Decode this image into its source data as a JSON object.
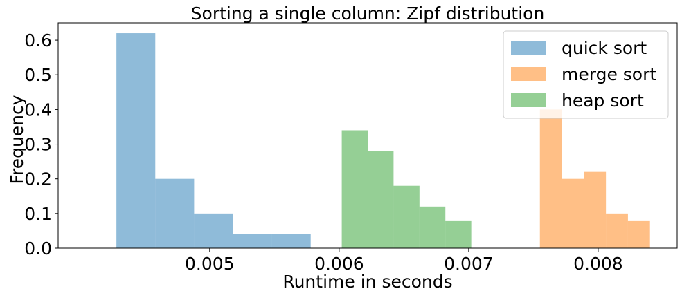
{
  "chart_data": {
    "type": "bar",
    "title": "Sorting a single column: Zipf distribution",
    "xlabel": "Runtime in seconds",
    "ylabel": "Frequency",
    "xlim": [
      0.00383,
      0.00861
    ],
    "ylim": [
      0.0,
      0.65
    ],
    "xticks": [
      {
        "value": 0.005,
        "label": "0.005"
      },
      {
        "value": 0.006,
        "label": "0.006"
      },
      {
        "value": 0.007,
        "label": "0.007"
      },
      {
        "value": 0.008,
        "label": "0.008"
      }
    ],
    "yticks": [
      {
        "value": 0.0,
        "label": "0.0"
      },
      {
        "value": 0.1,
        "label": "0.1"
      },
      {
        "value": 0.2,
        "label": "0.2"
      },
      {
        "value": 0.3,
        "label": "0.3"
      },
      {
        "value": 0.4,
        "label": "0.4"
      },
      {
        "value": 0.5,
        "label": "0.5"
      },
      {
        "value": 0.6,
        "label": "0.6"
      }
    ],
    "grid": false,
    "legend_position": "top-right",
    "series": [
      {
        "name": "quick sort",
        "color": "#1f77b4",
        "alpha": 0.5,
        "bins": [
          0.00428,
          0.00458,
          0.00488,
          0.00518,
          0.00548,
          0.00578
        ],
        "values": [
          0.62,
          0.2,
          0.1,
          0.04,
          0.04
        ]
      },
      {
        "name": "merge sort",
        "color": "#ff7f0e",
        "alpha": 0.5,
        "bins": [
          0.00755,
          0.00772,
          0.00789,
          0.00806,
          0.00823,
          0.0084
        ],
        "values": [
          0.4,
          0.2,
          0.22,
          0.1,
          0.08
        ]
      },
      {
        "name": "heap sort",
        "color": "#2ca02c",
        "alpha": 0.5,
        "bins": [
          0.00602,
          0.00622,
          0.00642,
          0.00662,
          0.00682,
          0.00702
        ],
        "values": [
          0.34,
          0.28,
          0.18,
          0.12,
          0.08
        ]
      }
    ]
  }
}
